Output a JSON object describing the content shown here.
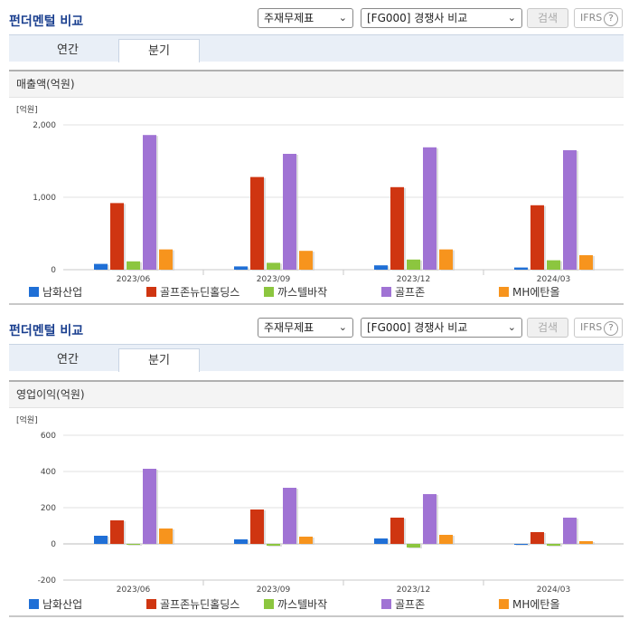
{
  "title": "펀더멘털 비교",
  "select_statement": "주재무제표",
  "select_compare": "[FG000] 경쟁사 비교",
  "search_label": "검색",
  "ifrs_label": "IFRS",
  "help_glyph": "?",
  "tabs": [
    "연간",
    "분기"
  ],
  "active_tab": "분기",
  "colors": {
    "남화산업": "#1f6fd6",
    "골프존뉴딘홀딩스": "#cf3511",
    "까스텔바작": "#8cc63f",
    "골프존": "#a073d4",
    "MH에탄올": "#f7941d"
  },
  "chart_data": [
    {
      "type": "bar",
      "title": "매출액(억원)",
      "ylabel": "[억원]",
      "categories": [
        "2023/06",
        "2023/09",
        "2023/12",
        "2024/03"
      ],
      "ylim": [
        0,
        2000
      ],
      "yticks": [
        0,
        1000,
        2000
      ],
      "ytick_labels": [
        "0",
        "1,000",
        "2,000"
      ],
      "grid": true,
      "legend": "bottom",
      "series": [
        {
          "name": "남화산업",
          "values": [
            80,
            45,
            60,
            30
          ]
        },
        {
          "name": "골프존뉴딘홀딩스",
          "values": [
            920,
            1280,
            1140,
            890
          ]
        },
        {
          "name": "까스텔바작",
          "values": [
            115,
            95,
            140,
            130
          ]
        },
        {
          "name": "골프존",
          "values": [
            1860,
            1600,
            1690,
            1650
          ]
        },
        {
          "name": "MH에탄올",
          "values": [
            280,
            260,
            280,
            200
          ]
        }
      ]
    },
    {
      "type": "bar",
      "title": "영업이익(억원)",
      "ylabel": "[억원]",
      "categories": [
        "2023/06",
        "2023/09",
        "2023/12",
        "2024/03"
      ],
      "ylim": [
        -200,
        600
      ],
      "yticks": [
        -200,
        0,
        200,
        400,
        600
      ],
      "ytick_labels": [
        "-200",
        "0",
        "200",
        "400",
        "600"
      ],
      "grid": true,
      "legend": "bottom",
      "series": [
        {
          "name": "남화산업",
          "values": [
            45,
            25,
            30,
            -5
          ]
        },
        {
          "name": "골프존뉴딘홀딩스",
          "values": [
            130,
            190,
            145,
            65
          ]
        },
        {
          "name": "까스텔바작",
          "values": [
            -5,
            -10,
            -20,
            -10
          ]
        },
        {
          "name": "골프존",
          "values": [
            415,
            310,
            275,
            145
          ]
        },
        {
          "name": "MH에탄올",
          "values": [
            85,
            40,
            50,
            15
          ]
        }
      ]
    }
  ]
}
